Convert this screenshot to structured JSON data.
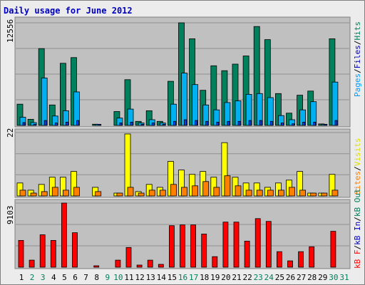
{
  "title": "Daily usage for June 2012",
  "colors": {
    "frame_bg": "#ececec",
    "plot_bg": "#c0c0c0",
    "title": "#0000c0",
    "hits": "#00805c",
    "files": "#00b0f0",
    "pages": "#0040ff",
    "visits": "#ffff00",
    "sites": "#ff8000",
    "kb_f": "#ff0000",
    "kb_in": "#0000ff",
    "kb_out": "#00a030",
    "weekend_day": "#00805c",
    "weekday": "#000000",
    "right_pages": "#00a0ff",
    "right_files": "#0000c0",
    "right_hits": "#00805c",
    "right_sites": "#ff8000",
    "right_visits": "#e0e000",
    "right_kbf": "#ff0000",
    "right_kbin": "#0000c0",
    "right_kbout": "#00805c",
    "sep": "#000000"
  },
  "chart_data": [
    {
      "type": "bar",
      "panel": "hits-files-pages",
      "ymax_label": "12556",
      "ymax": 12556,
      "categories": [
        "1",
        "2",
        "3",
        "4",
        "5",
        "6",
        "7",
        "8",
        "9",
        "10",
        "11",
        "12",
        "13",
        "14",
        "15",
        "16",
        "17",
        "18",
        "19",
        "20",
        "21",
        "22",
        "23",
        "24",
        "25",
        "26",
        "27",
        "28",
        "29",
        "30",
        "31"
      ],
      "weekend": [
        2,
        3,
        9,
        10,
        16,
        17,
        23,
        24,
        30,
        31
      ],
      "series": [
        {
          "key": "hits",
          "values": [
            2600,
            750,
            9400,
            2500,
            7600,
            8300,
            0,
            150,
            0,
            1700,
            5600,
            500,
            1800,
            500,
            5400,
            12556,
            10600,
            4300,
            7300,
            6700,
            7500,
            8500,
            12100,
            10500,
            3900,
            1500,
            3700,
            4200,
            180,
            10600,
            0
          ]
        },
        {
          "key": "files",
          "values": [
            1000,
            350,
            5800,
            1150,
            1800,
            4100,
            0,
            80,
            0,
            900,
            2000,
            300,
            700,
            300,
            2600,
            6400,
            5000,
            2500,
            1900,
            2800,
            3000,
            3800,
            3900,
            3400,
            1200,
            700,
            1900,
            2900,
            90,
            5300,
            0
          ]
        },
        {
          "key": "pages",
          "values": [
            350,
            150,
            600,
            300,
            400,
            600,
            0,
            30,
            0,
            300,
            400,
            150,
            300,
            150,
            500,
            700,
            600,
            500,
            400,
            500,
            500,
            600,
            600,
            500,
            300,
            200,
            400,
            400,
            30,
            600,
            0
          ]
        }
      ]
    },
    {
      "type": "bar",
      "panel": "visits-sites",
      "ymax_label": "22",
      "ymax": 22,
      "categories": [
        "1",
        "2",
        "3",
        "4",
        "5",
        "6",
        "7",
        "8",
        "9",
        "10",
        "11",
        "12",
        "13",
        "14",
        "15",
        "16",
        "17",
        "18",
        "19",
        "20",
        "21",
        "22",
        "23",
        "24",
        "25",
        "26",
        "27",
        "28",
        "29",
        "30",
        "31"
      ],
      "series": [
        {
          "key": "visits",
          "values": [
            4.5,
            2,
            4,
            6.5,
            6.5,
            8.5,
            0,
            3,
            0,
            1,
            21.5,
            1.5,
            4,
            3,
            12,
            9,
            7.5,
            8.5,
            6.5,
            18.5,
            6.5,
            4.5,
            4.5,
            3,
            4.5,
            5.5,
            8.5,
            1,
            1,
            7.5,
            0
          ]
        },
        {
          "key": "sites",
          "values": [
            2,
            1,
            1.5,
            3,
            2,
            3,
            0,
            1.5,
            0,
            1,
            3,
            1,
            2,
            2,
            4,
            3,
            3.5,
            5,
            3,
            7,
            3.5,
            2,
            2,
            2,
            2,
            3,
            2,
            1,
            1,
            2,
            0
          ]
        }
      ]
    },
    {
      "type": "bar",
      "panel": "kbytes",
      "ymax_label": "9103",
      "ymax": 9103,
      "categories": [
        "1",
        "2",
        "3",
        "4",
        "5",
        "6",
        "7",
        "8",
        "9",
        "10",
        "11",
        "12",
        "13",
        "14",
        "15",
        "16",
        "17",
        "18",
        "19",
        "20",
        "21",
        "22",
        "23",
        "24",
        "25",
        "26",
        "27",
        "28",
        "29",
        "30",
        "31"
      ],
      "series": [
        {
          "key": "kb_f",
          "values": [
            3800,
            1000,
            4600,
            3800,
            9103,
            4900,
            0,
            200,
            0,
            1000,
            2800,
            300,
            1000,
            400,
            5900,
            6000,
            6000,
            4700,
            1500,
            6400,
            6400,
            3700,
            6900,
            6500,
            2200,
            900,
            2200,
            2900,
            0,
            5100,
            0
          ]
        }
      ]
    }
  ],
  "right_labels": {
    "panel1": {
      "pages": "Pages",
      "files": "Files",
      "hits": "Hits",
      "sep": "/"
    },
    "panel2": {
      "sites": "Sites",
      "visits": "Visits",
      "sep": "/"
    },
    "panel3": {
      "kbf": "kB F",
      "kbin": "kB In",
      "kbout": "kB Out",
      "sep": "/"
    }
  }
}
